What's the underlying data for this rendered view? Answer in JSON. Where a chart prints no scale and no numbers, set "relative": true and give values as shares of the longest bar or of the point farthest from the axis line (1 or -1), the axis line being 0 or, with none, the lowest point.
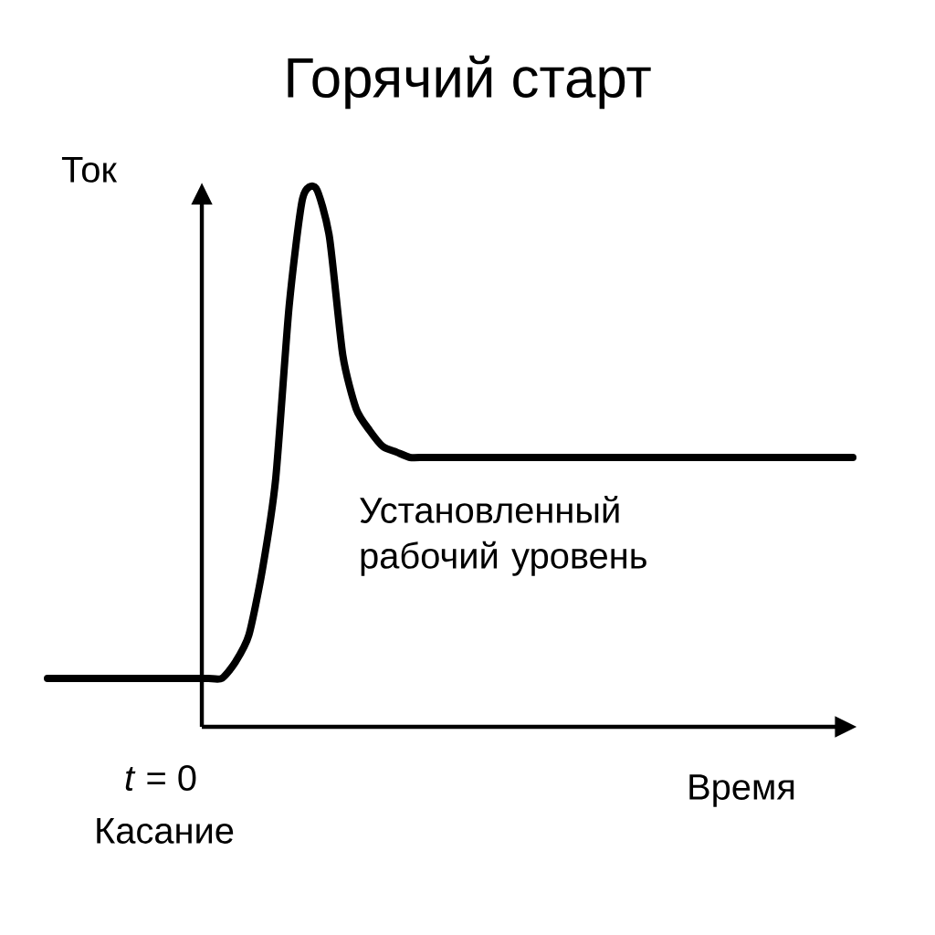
{
  "chart_data": {
    "type": "line",
    "title": "Горячий старт",
    "xlabel": "Время",
    "ylabel": "Ток",
    "relative": true,
    "color": "#000000",
    "categories": [
      null,
      null,
      null,
      null,
      null,
      null,
      null,
      null,
      null,
      null,
      null,
      null,
      null,
      null,
      null,
      null,
      null,
      null,
      null,
      null,
      null,
      null,
      null,
      null,
      null,
      null,
      null,
      null,
      null,
      null,
      null,
      null,
      null,
      null,
      null,
      null,
      null,
      null,
      null,
      null,
      null,
      null,
      null,
      null,
      null,
      null,
      null,
      null,
      null,
      null,
      null,
      null,
      null,
      null,
      null,
      null,
      null,
      null,
      null,
      null,
      null
    ],
    "values": [
      0.09,
      0.09,
      0.09,
      0.09,
      0.09,
      0.09,
      0.09,
      0.09,
      0.09,
      0.09,
      0.09,
      0.09,
      0.09,
      0.09,
      0.12,
      0.17,
      0.29,
      0.46,
      0.78,
      0.98,
      1,
      0.91,
      0.69,
      0.59,
      0.55,
      0.52,
      0.51,
      0.5,
      0.5,
      0.5,
      0.5,
      0.5,
      0.5,
      0.5,
      0.5,
      0.5,
      0.5,
      0.5,
      0.5,
      0.5,
      0.5,
      0.5,
      0.5,
      0.5,
      0.5,
      0.5,
      0.5,
      0.5,
      0.5,
      0.5,
      0.5,
      0.5,
      0.5,
      0.5,
      0.5,
      0.5,
      0.5,
      0.5,
      0.5,
      0.5,
      0.5
    ],
    "annotations": [
      "*t* = 0",
      "Касание",
      "Установленный рабочий уровень"
    ]
  }
}
